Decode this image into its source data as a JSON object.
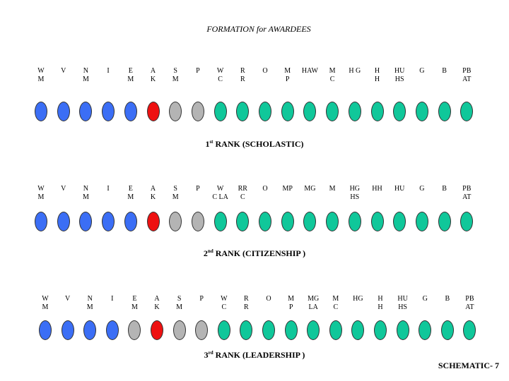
{
  "title": "FORMATION for AWARDEES",
  "footer": "SCHEMATIC- 7",
  "colors": {
    "blue": "#3b6ef5",
    "red": "#ee1111",
    "gray": "#b4b4b4",
    "green": "#10c79a"
  },
  "ranks": [
    {
      "ordinal": "1",
      "suffix": "st",
      "name": "RANK (SCHOLASTIC)",
      "labels": [
        "W\nM",
        "V",
        "N\nM",
        "I",
        "E\nM",
        "A\nK",
        "S\nM",
        "P",
        "W\nC",
        "R\nR",
        "O",
        "M\nP",
        "HAW",
        "M\nC",
        "H G",
        "H\nH",
        "HU\nHS",
        "G",
        "B",
        "PB\nAT"
      ],
      "ovals": [
        "blue",
        "blue",
        "blue",
        "blue",
        "blue",
        "red",
        "gray",
        "gray",
        "green",
        "green",
        "green",
        "green",
        "green",
        "green",
        "green",
        "green",
        "green",
        "green",
        "green",
        "green"
      ]
    },
    {
      "ordinal": "2",
      "suffix": "nd",
      "name": "RANK (CITIZENSHIP )",
      "labels": [
        "W\nM",
        "V",
        "N\nM",
        "I",
        "E\nM",
        "A\nK",
        "S\nM",
        "P",
        "W\nC LA",
        "RR\nC",
        "O",
        "MP",
        "MG",
        "M",
        "HG\nHS",
        "HH",
        "HU",
        "G",
        "B",
        "PB\nAT"
      ],
      "ovals": [
        "blue",
        "blue",
        "blue",
        "blue",
        "blue",
        "red",
        "gray",
        "gray",
        "green",
        "green",
        "green",
        "green",
        "green",
        "green",
        "green",
        "green",
        "green",
        "green",
        "green",
        "green"
      ]
    },
    {
      "ordinal": "3",
      "suffix": "rd",
      "name": "RANK (LEADERSHIP )",
      "labels": [
        "W\nM",
        "V",
        "N\nM",
        "I",
        "E\nM",
        "A\nK",
        "S\nM",
        "P",
        "W\nC",
        "R\nR",
        "O",
        "M\nP",
        "MG\nLA",
        "M\nC",
        "HG",
        "H\nH",
        "HU\nHS",
        "G",
        "B",
        "PB\nAT"
      ],
      "ovals": [
        "blue",
        "blue",
        "blue",
        "blue",
        "gray",
        "red",
        "gray",
        "gray",
        "green",
        "green",
        "green",
        "green",
        "green",
        "green",
        "green",
        "green",
        "green",
        "green",
        "green",
        "green"
      ]
    }
  ]
}
